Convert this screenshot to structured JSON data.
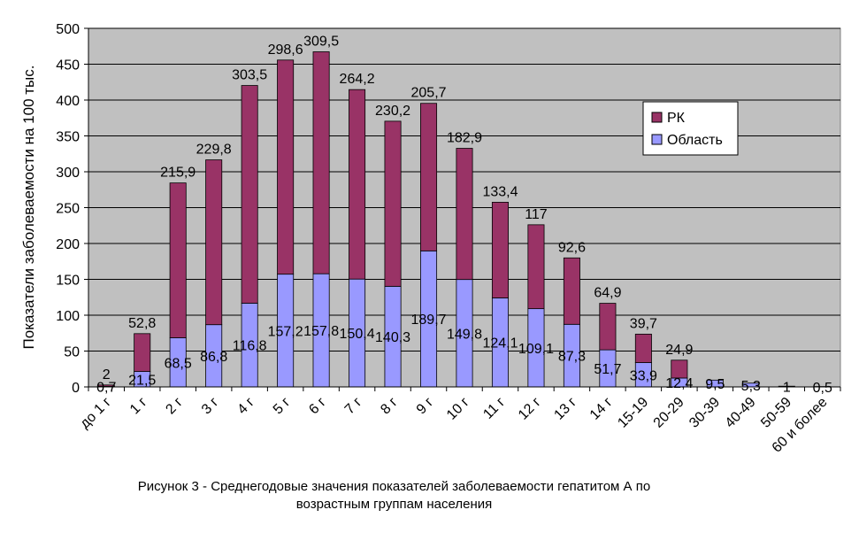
{
  "chart_data": {
    "type": "bar",
    "stacked": true,
    "ylabel": "Показатели заболеваемости на 100 тыс.",
    "ylim": [
      0,
      500
    ],
    "yticks": [
      0,
      50,
      100,
      150,
      200,
      250,
      300,
      350,
      400,
      450,
      500
    ],
    "grid": "horizontal",
    "legend_position": "right",
    "categories": [
      "до 1 г",
      "1 г",
      "2 г",
      "3 г",
      "4 г",
      "5 г",
      "6 г",
      "7 г",
      "8 г",
      "9 г",
      "10 г",
      "11 г",
      "12 г",
      "13 г",
      "14 г",
      "15-19",
      "20-29",
      "30-39",
      "40-49",
      "50-59",
      "60 и более"
    ],
    "series": [
      {
        "name": "Область",
        "color": "#9999ff",
        "values": [
          0.7,
          21.5,
          68.5,
          86.8,
          116.8,
          157.2,
          157.8,
          150.4,
          140.3,
          189.7,
          149.8,
          124.1,
          109.1,
          87.3,
          51.7,
          33.9,
          12.4,
          9.5,
          5.3,
          1,
          0.5
        ],
        "labels": [
          "0,7",
          "21,5",
          "68,5",
          "86,8",
          "116,8",
          "157,2",
          "157,8",
          "150,4",
          "140,3",
          "189,7",
          "149,8",
          "124,1",
          "109,1",
          "87,3",
          "51,7",
          "33,9",
          "12,4",
          "9,5",
          "5,3",
          "1",
          "0,5"
        ]
      },
      {
        "name": "РК",
        "color": "#993366",
        "values": [
          2,
          52.8,
          215.9,
          229.8,
          303.5,
          298.6,
          309.5,
          264.2,
          230.2,
          205.7,
          182.9,
          133.4,
          117,
          92.6,
          64.9,
          39.7,
          24.9,
          0,
          0,
          0,
          0
        ],
        "labels": [
          "2",
          "52,8",
          "215,9",
          "229,8",
          "303,5",
          "298,6",
          "309,5",
          "264,2",
          "230,2",
          "205,7",
          "182,9",
          "133,4",
          "117",
          "92,6",
          "64,9",
          "39,7",
          "24,9",
          "",
          "",
          "",
          ""
        ]
      }
    ],
    "caption": [
      "Рисунок 3 - Среднегодовые значения показателей заболеваемости гепатитом А по",
      "возрастным группам населения"
    ]
  }
}
